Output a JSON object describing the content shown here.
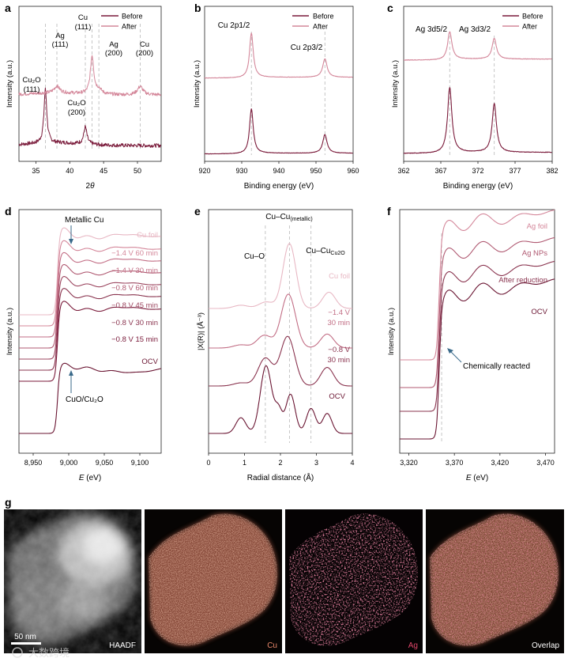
{
  "colors": {
    "before": "#7a1a3a",
    "after": "#d4879a",
    "ref": "#e8b8c4",
    "dash": "#b8b8b8",
    "text": "#222222"
  },
  "legend": {
    "before": "Before",
    "after": "After"
  },
  "panels": {
    "a": {
      "letter": "a",
      "chart_data": {
        "type": "line",
        "title": "",
        "xlabel": "2θ",
        "xlabel_prefix": "2",
        "xlabel_italic": "θ",
        "ylabel": "Intensity (a.u.)",
        "xlim": [
          32.5,
          53.5
        ],
        "xticks": [
          35,
          40,
          45,
          50
        ],
        "series": [
          {
            "name": "Before",
            "offset": 0.0,
            "peaks": [
              [
                36.4,
                1.0,
                0.25
              ],
              [
                42.3,
                0.32,
                0.28
              ]
            ],
            "noise": 0.035
          },
          {
            "name": "After",
            "offset": 1.3,
            "peaks": [
              [
                38.1,
                0.18,
                0.5
              ],
              [
                43.3,
                1.0,
                0.3
              ],
              [
                44.3,
                0.12,
                0.5
              ],
              [
                50.4,
                0.22,
                0.5
              ]
            ],
            "noise": 0.045
          }
        ],
        "annotations": {
          "cu111": [
            "Cu",
            "(111)"
          ],
          "ag111": [
            "Ag",
            "(111)"
          ],
          "ag200": [
            "Ag",
            "(200)"
          ],
          "cu200": [
            "Cu",
            "(200)"
          ],
          "cu2o111": [
            "Cu₂O",
            "(111)"
          ],
          "cu2o200": [
            "Cu₂O",
            "(200)"
          ]
        },
        "guides": [
          36.4,
          38.1,
          42.3,
          43.3,
          44.3,
          50.4
        ]
      }
    },
    "b": {
      "letter": "b",
      "chart_data": {
        "type": "line",
        "title": "",
        "xlabel": "Binding energy (eV)",
        "ylabel": "Intensity (a.u.)",
        "xlim": [
          920,
          960
        ],
        "xticks": [
          920,
          930,
          940,
          950,
          960
        ],
        "series": [
          {
            "name": "Before",
            "offset": 0.0,
            "peaks": [
              [
                932.6,
                1.0,
                0.6
              ],
              [
                952.4,
                0.42,
                0.7
              ]
            ]
          },
          {
            "name": "After",
            "offset": 1.35,
            "peaks": [
              [
                932.6,
                1.0,
                0.6
              ],
              [
                952.4,
                0.42,
                0.7
              ]
            ]
          }
        ],
        "annotations": {
          "cu2p12": "Cu 2p1/2",
          "cu2p32": "Cu 2p3/2"
        },
        "guides": [
          932.6,
          952.4
        ]
      }
    },
    "c": {
      "letter": "c",
      "chart_data": {
        "type": "line",
        "title": "",
        "xlabel": "Binding energy (eV)",
        "ylabel": "Intensity (a.u.)",
        "xlim": [
          362,
          382
        ],
        "xticks": [
          362,
          367,
          372,
          377,
          382
        ],
        "series": [
          {
            "name": "Before",
            "offset": 0.0,
            "peaks": [
              [
                368.2,
                1.0,
                0.35
              ],
              [
                374.2,
                0.75,
                0.35
              ]
            ]
          },
          {
            "name": "After",
            "offset": 1.55,
            "peaks": [
              [
                368.2,
                0.42,
                0.35
              ],
              [
                374.2,
                0.32,
                0.35
              ]
            ]
          }
        ],
        "annotations": {
          "ag3d52": "Ag 3d5/2",
          "ag3d32": "Ag 3d3/2"
        },
        "guides": [
          368.2,
          374.2
        ]
      }
    },
    "d": {
      "letter": "d",
      "chart_data": {
        "type": "line",
        "title": "",
        "xlabel": "E (eV)",
        "xlabel_italic": "E",
        "xlabel_suffix": " (eV)",
        "ylabel": "Intensity (a.u.)",
        "xlim": [
          8930,
          9130
        ],
        "xticks": [
          8950,
          9000,
          9050,
          9100
        ],
        "xticklabels": [
          "8,950",
          "9,000",
          "9,050",
          "9,100"
        ],
        "series": [
          {
            "name": "Cu foil"
          },
          {
            "name": "−1.4 V 60 min"
          },
          {
            "name": "−1.4 V 30 min"
          },
          {
            "name": "−0.8 V 60 min"
          },
          {
            "name": "−0.8 V 45 min"
          },
          {
            "name": "−0.8 V 30 min"
          },
          {
            "name": "−0.8 V 15 min"
          },
          {
            "name": "OCV"
          }
        ],
        "annotations": {
          "metallic": "Metallic Cu",
          "cuo": "CuO/Cu₂O"
        }
      }
    },
    "e": {
      "letter": "e",
      "chart_data": {
        "type": "line",
        "title": "",
        "xlabel": "Radial distance (Å)",
        "ylabel": "|X(R)| (Å⁻³)",
        "xlim": [
          0,
          4
        ],
        "xticks": [
          0,
          1,
          2,
          3,
          4
        ],
        "series": [
          {
            "name": "Cu foil"
          },
          {
            "name": "−1.4 V 30 min"
          },
          {
            "name": "−0.8 V 30 min"
          },
          {
            "name": "OCV"
          }
        ],
        "annotations": {
          "cuo": "Cu–O",
          "cucu": "Cu–Cu",
          "cucu_sub": "(metallic)",
          "cucu2o": "Cu–Cu",
          "cucu2o_sub": "Cu2O"
        },
        "guides": [
          1.58,
          2.25,
          2.85
        ]
      }
    },
    "f": {
      "letter": "f",
      "chart_data": {
        "type": "line",
        "title": "",
        "xlabel": "E (eV)",
        "xlabel_italic": "E",
        "xlabel_suffix": " (eV)",
        "ylabel": "Intensity (a.u.)",
        "xlim": [
          3310,
          3480
        ],
        "xticks": [
          3320,
          3370,
          3420,
          3470
        ],
        "xticklabels": [
          "3,320",
          "3,370",
          "3,420",
          "3,470"
        ],
        "series": [
          {
            "name": "Ag foil"
          },
          {
            "name": "Ag NPs"
          },
          {
            "name": "After reduction"
          },
          {
            "name": "OCV"
          }
        ],
        "annotations": {
          "chem": "Chemically reacted"
        },
        "guides": [
          3356
        ]
      }
    },
    "g": {
      "letter": "g",
      "tiles": [
        {
          "label": "HAADF",
          "color": "#ffffff"
        },
        {
          "label": "Cu",
          "color": "#e8876a"
        },
        {
          "label": "Ag",
          "color": "#e0466a"
        },
        {
          "label": "Overlap",
          "color": "#ffffff"
        }
      ],
      "scalebar": "50 nm",
      "watermark": "大数跨境"
    }
  }
}
